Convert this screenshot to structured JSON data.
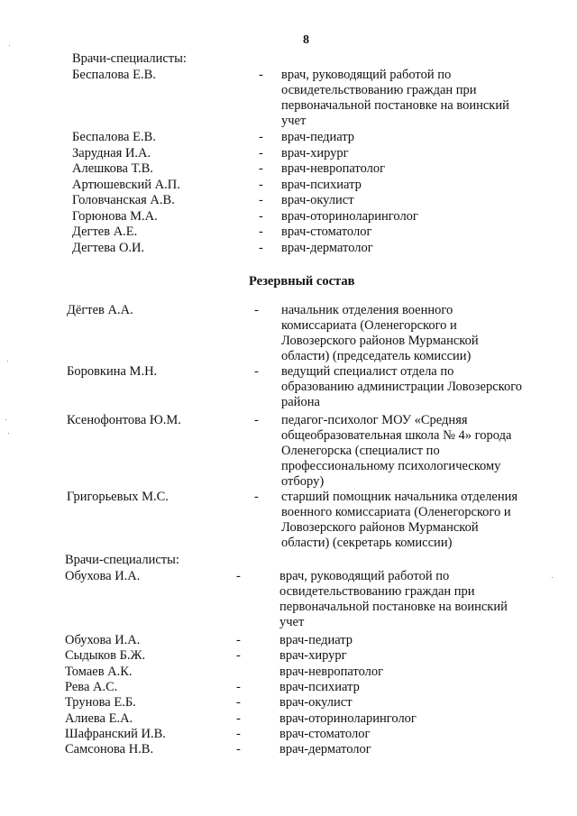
{
  "page_number": "8",
  "section1": {
    "heading": "Врачи-специалисты:",
    "entries": [
      {
        "name": "Беспалова Е.В.",
        "dash": "-",
        "role": [
          "врач, руководящий работой по",
          "освидетельствованию граждан при",
          "первоначальной постановке на воинский",
          "учет"
        ]
      },
      {
        "name": "Беспалова Е.В.",
        "dash": "-",
        "role": [
          "врач-педиатр"
        ]
      },
      {
        "name": "Зарудная И.А.",
        "dash": "-",
        "role": [
          "врач-хирург"
        ]
      },
      {
        "name": "Алешкова Т.В.",
        "dash": "-",
        "role": [
          "врач-невропатолог"
        ]
      },
      {
        "name": "Артюшевский А.П.",
        "dash": "-",
        "role": [
          "врач-психиатр"
        ]
      },
      {
        "name": "Головчанская А.В.",
        "dash": "-",
        "role": [
          "врач-окулист"
        ]
      },
      {
        "name": "Горюнова М.А.",
        "dash": "-",
        "role": [
          "врач-оториноларинголог"
        ]
      },
      {
        "name": "Дегтев А.Е.",
        "dash": "-",
        "role": [
          "врач-стоматолог"
        ]
      },
      {
        "name": "Дегтева О.И.",
        "dash": "-",
        "role": [
          "врач-дерматолог"
        ]
      }
    ]
  },
  "reserve_title": "Резервный состав",
  "section2": {
    "entries": [
      {
        "name": "Дёгтев А.А.",
        "dash": "-",
        "role": [
          "начальник отделения военного",
          "комиссариата (Оленегорского и",
          "Ловозерского районов Мурманской",
          "области) (председатель комиссии)"
        ]
      },
      {
        "name": "Боровкина М.Н.",
        "dash": "-",
        "role": [
          "ведущий специалист отдела по",
          "образованию администрации Ловозерского",
          "района"
        ]
      },
      {
        "name": "Ксенофонтова Ю.М.",
        "dash": "-",
        "role": [
          "педагог-психолог МОУ «Средняя",
          "общеобразовательная школа № 4» города",
          "Оленегорска (специалист по",
          "профессиональному психологическому",
          "отбору)"
        ]
      },
      {
        "name": "Григорьевых М.С.",
        "dash": "-",
        "role": [
          "старший помощник начальника отделения",
          "военного комиссариата (Оленегорского и",
          "Ловозерского районов Мурманской",
          "области) (секретарь комиссии)"
        ]
      }
    ]
  },
  "section3": {
    "heading": "Врачи-специалисты:",
    "entries": [
      {
        "name": "Обухова И.А.",
        "dash": "-",
        "role": [
          "врач, руководящий работой по",
          "освидетельствованию граждан при",
          "первоначальной постановке на воинский",
          "учет"
        ]
      },
      {
        "name": "Обухова И.А.",
        "dash": "-",
        "role": [
          "врач-педиатр"
        ]
      },
      {
        "name": "Сыдыков Б.Ж.",
        "dash": "-",
        "role": [
          "врач-хирург"
        ]
      },
      {
        "name": "Томаев А.К.",
        "dash": "",
        "role": [
          "врач-невропатолог"
        ]
      },
      {
        "name": "Рева А.С.",
        "dash": "-",
        "role": [
          "врач-психиатр"
        ]
      },
      {
        "name": "Трунова Е.Б.",
        "dash": "-",
        "role": [
          "врач-окулист"
        ]
      },
      {
        "name": "Алиева Е.А.",
        "dash": "-",
        "role": [
          "врач-оториноларинголог"
        ]
      },
      {
        "name": "Шафранский И.В.",
        "dash": "-",
        "role": [
          "врач-стоматолог"
        ]
      },
      {
        "name": "Самсонова Н.В.",
        "dash": "-",
        "role": [
          "врач-дерматолог"
        ]
      }
    ]
  }
}
